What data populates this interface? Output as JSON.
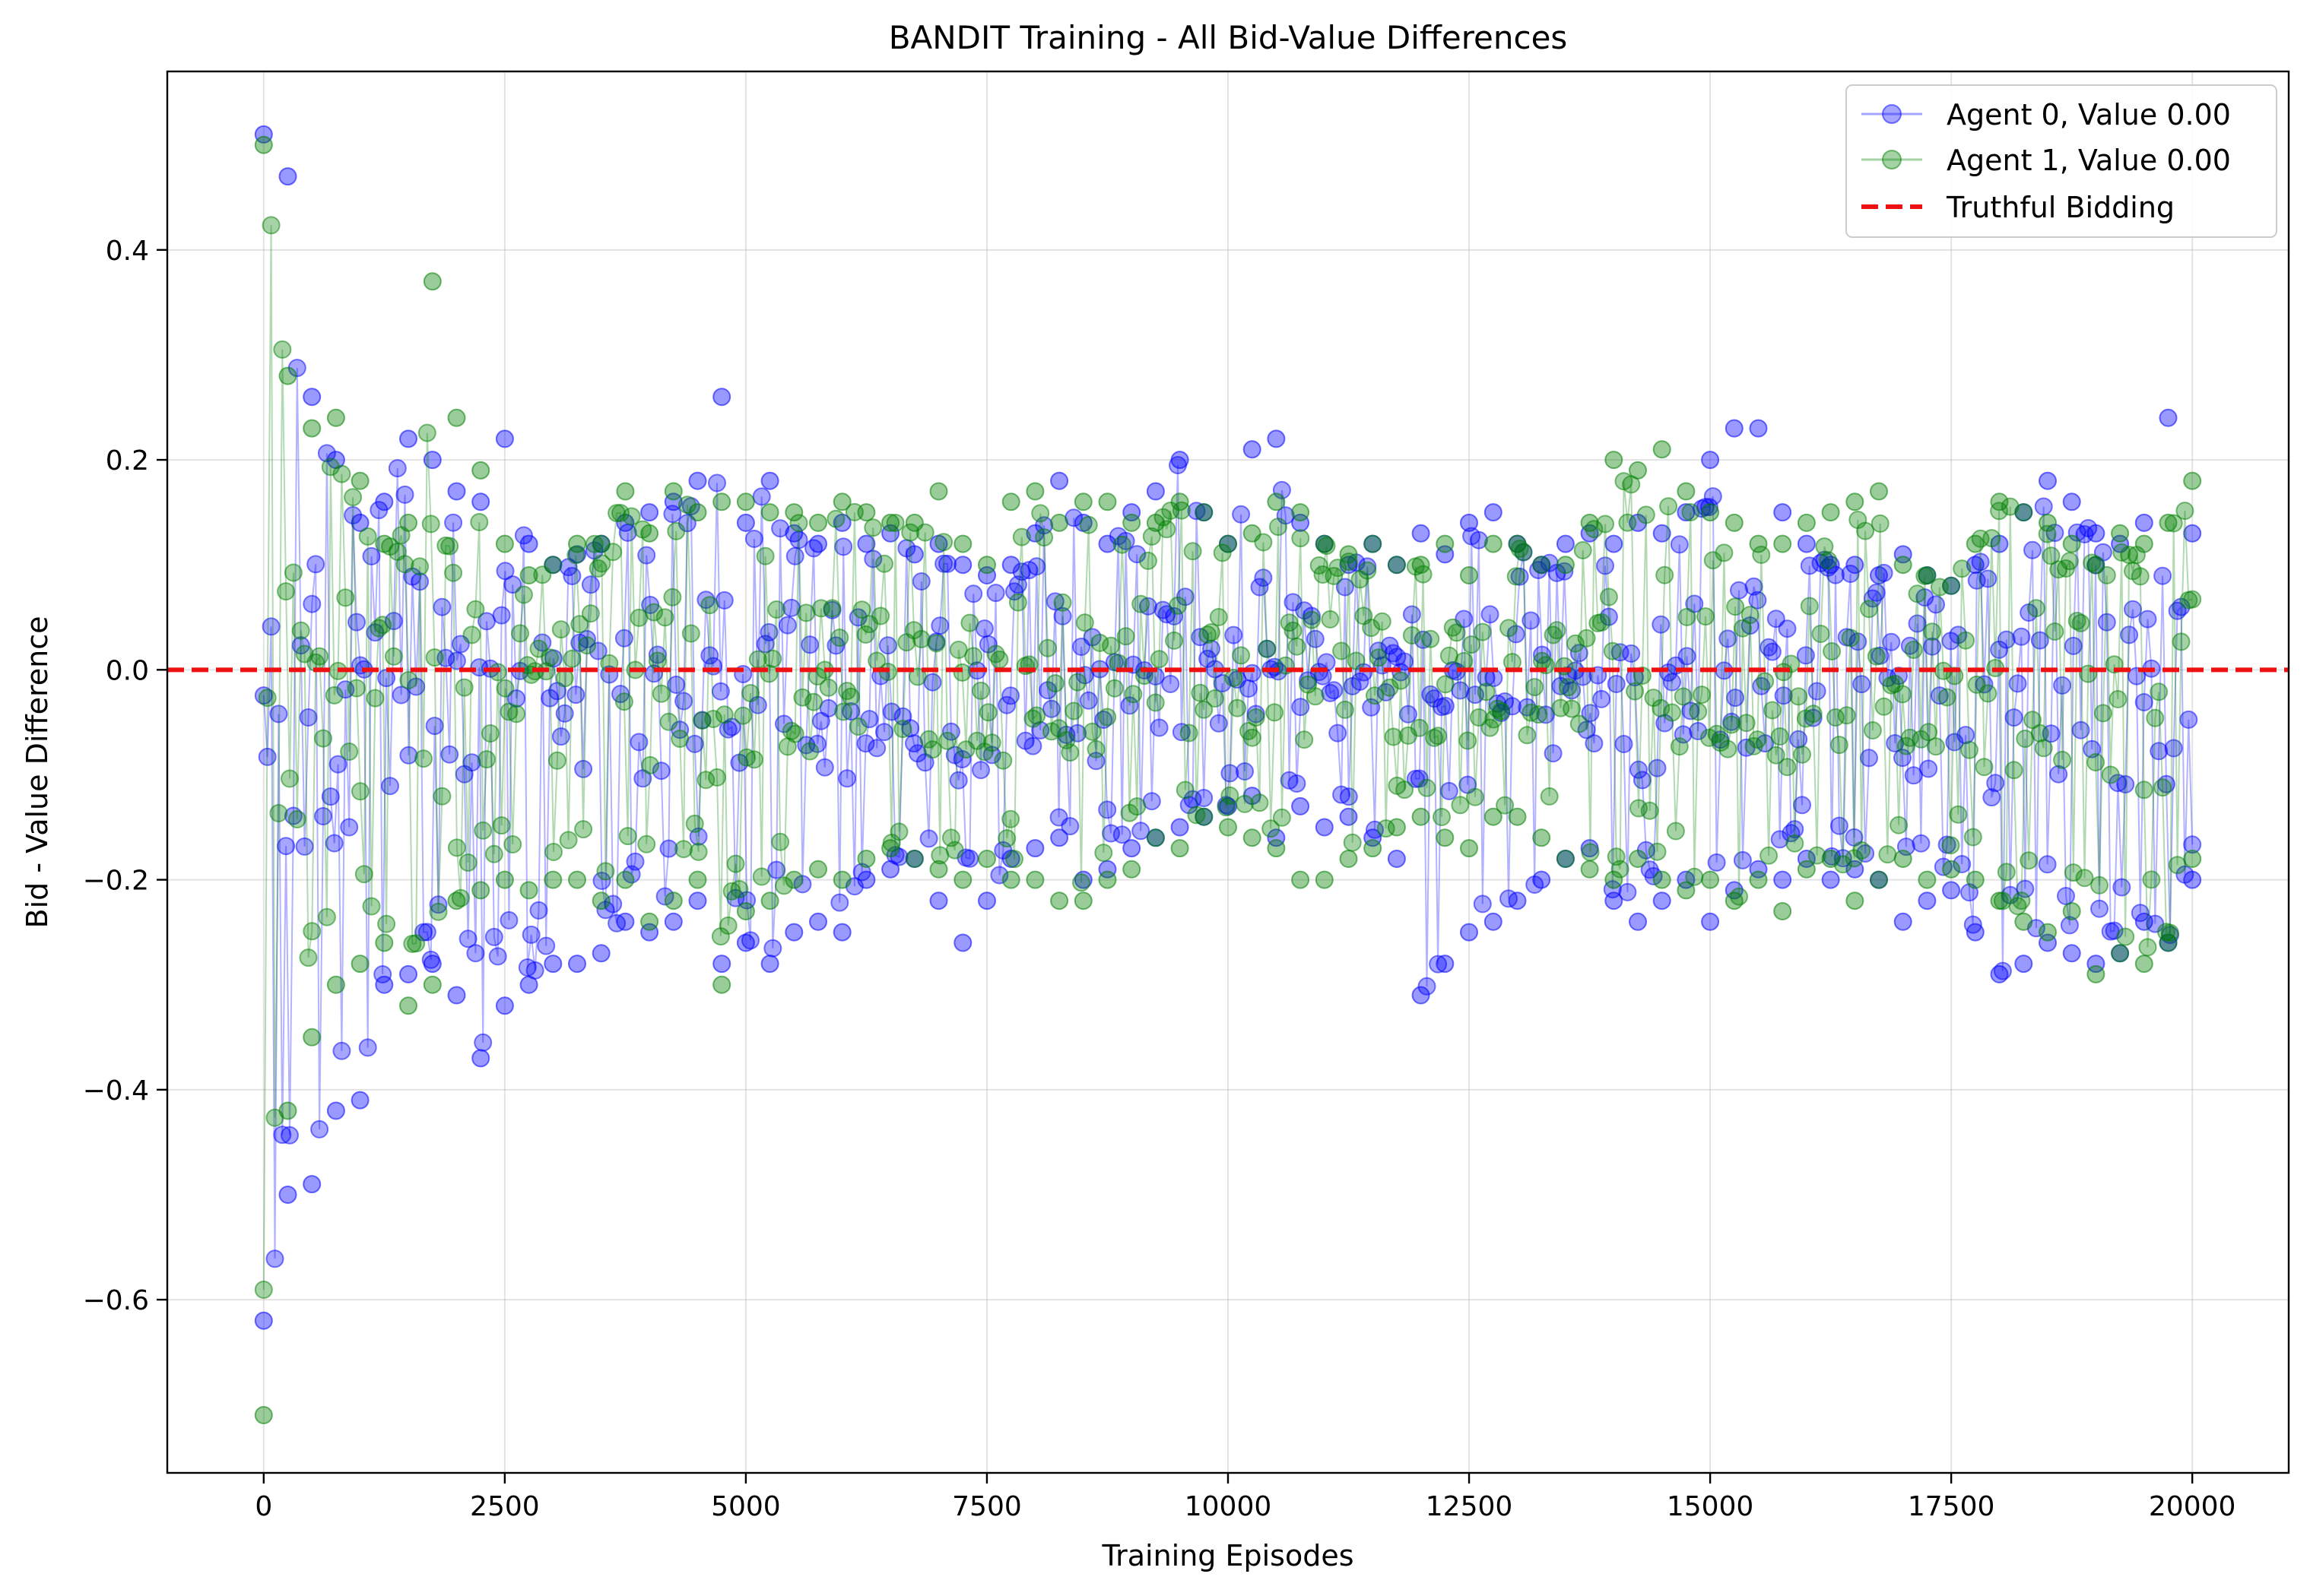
{
  "chart_data": {
    "type": "line",
    "title": "BANDIT Training - All Bid-Value Differences",
    "xlabel": "Training Episodes",
    "ylabel": "Bid - Value Difference",
    "xlim": [
      -1000,
      21000
    ],
    "ylim": [
      -0.765,
      0.57
    ],
    "x_ticks": [
      0,
      2500,
      5000,
      7500,
      10000,
      12500,
      15000,
      17500,
      20000
    ],
    "x_tick_labels": [
      "0",
      "2500",
      "5000",
      "7500",
      "10000",
      "12500",
      "15000",
      "17500",
      "20000"
    ],
    "y_ticks": [
      0.4,
      0.2,
      0.0,
      -0.2,
      -0.4,
      -0.6
    ],
    "y_tick_labels": [
      "0.4",
      "0.2",
      "0.0",
      "−0.2",
      "−0.4",
      "−0.6"
    ],
    "grid": true,
    "legend_position": "top-right",
    "reference_line": {
      "name": "Truthful Bidding",
      "y": 0.0,
      "color": "#ee1111",
      "style": "dashed"
    },
    "series": [
      {
        "name": "Agent 0, Value 0.00",
        "color": "#0000ff",
        "marker": "circle",
        "x": [
          0,
          250,
          500,
          750,
          1000,
          1250,
          1500,
          1750,
          2000,
          2250,
          2500,
          2750,
          3000,
          3250,
          3500,
          3750,
          4000,
          4250,
          4500,
          4750,
          5000,
          5250,
          5500,
          5750,
          6000,
          6250,
          6500,
          6750,
          7000,
          7250,
          7500,
          7750,
          8000,
          8250,
          8500,
          8750,
          9000,
          9250,
          9500,
          9750,
          10000,
          10250,
          10500,
          10750,
          11000,
          11250,
          11500,
          11750,
          12000,
          12250,
          12500,
          12750,
          13000,
          13250,
          13500,
          13750,
          14000,
          14250,
          14500,
          14750,
          15000,
          15250,
          15500,
          15750,
          16000,
          16250,
          16500,
          16750,
          17000,
          17250,
          17500,
          17750,
          18000,
          18250,
          18500,
          18750,
          19000,
          19250,
          19500,
          19750,
          20000
        ],
        "upper": [
          0.51,
          0.47,
          0.26,
          0.2,
          0.14,
          0.16,
          0.22,
          0.2,
          0.17,
          0.16,
          0.22,
          0.12,
          0.1,
          0.11,
          0.12,
          0.14,
          0.15,
          0.16,
          0.18,
          0.26,
          0.14,
          0.18,
          0.13,
          0.12,
          0.14,
          0.12,
          0.13,
          0.11,
          0.12,
          0.1,
          0.09,
          0.1,
          0.13,
          0.18,
          0.14,
          0.12,
          0.15,
          0.17,
          0.2,
          0.15,
          0.12,
          0.21,
          0.22,
          0.14,
          0.12,
          0.1,
          0.12,
          0.1,
          0.13,
          0.11,
          0.14,
          0.15,
          0.12,
          0.1,
          0.12,
          0.13,
          0.12,
          0.14,
          0.13,
          0.15,
          0.2,
          0.23,
          0.23,
          0.15,
          0.12,
          0.1,
          0.1,
          0.09,
          0.11,
          0.09,
          0.08,
          0.1,
          0.12,
          0.15,
          0.18,
          0.16,
          0.13,
          0.12,
          0.14,
          0.24,
          0.13
        ],
        "lower": [
          -0.62,
          -0.5,
          -0.49,
          -0.42,
          -0.41,
          -0.3,
          -0.29,
          -0.28,
          -0.31,
          -0.37,
          -0.32,
          -0.3,
          -0.28,
          -0.28,
          -0.27,
          -0.24,
          -0.25,
          -0.24,
          -0.22,
          -0.28,
          -0.26,
          -0.28,
          -0.25,
          -0.24,
          -0.25,
          -0.2,
          -0.19,
          -0.18,
          -0.22,
          -0.26,
          -0.22,
          -0.18,
          -0.17,
          -0.16,
          -0.2,
          -0.19,
          -0.17,
          -0.16,
          -0.15,
          -0.14,
          -0.13,
          -0.12,
          -0.16,
          -0.13,
          -0.15,
          -0.14,
          -0.16,
          -0.18,
          -0.31,
          -0.28,
          -0.25,
          -0.24,
          -0.22,
          -0.2,
          -0.18,
          -0.17,
          -0.22,
          -0.24,
          -0.22,
          -0.2,
          -0.24,
          -0.21,
          -0.19,
          -0.2,
          -0.18,
          -0.2,
          -0.19,
          -0.2,
          -0.24,
          -0.22,
          -0.21,
          -0.25,
          -0.29,
          -0.28,
          -0.26,
          -0.27,
          -0.28,
          -0.27,
          -0.24,
          -0.26,
          -0.2
        ]
      },
      {
        "name": "Agent 1, Value 0.00",
        "color": "#008000",
        "marker": "circle",
        "x": [
          0,
          250,
          500,
          750,
          1000,
          1250,
          1500,
          1750,
          2000,
          2250,
          2500,
          2750,
          3000,
          3250,
          3500,
          3750,
          4000,
          4250,
          4500,
          4750,
          5000,
          5250,
          5500,
          5750,
          6000,
          6250,
          6500,
          6750,
          7000,
          7250,
          7500,
          7750,
          8000,
          8250,
          8500,
          8750,
          9000,
          9250,
          9500,
          9750,
          10000,
          10250,
          10500,
          10750,
          11000,
          11250,
          11500,
          11750,
          12000,
          12250,
          12500,
          12750,
          13000,
          13250,
          13500,
          13750,
          14000,
          14250,
          14500,
          14750,
          15000,
          15250,
          15500,
          15750,
          16000,
          16250,
          16500,
          16750,
          17000,
          17250,
          17500,
          17750,
          18000,
          18250,
          18500,
          18750,
          19000,
          19250,
          19500,
          19750,
          20000
        ],
        "upper": [
          0.5,
          0.28,
          0.23,
          0.24,
          0.18,
          0.12,
          0.14,
          0.37,
          0.24,
          0.19,
          0.12,
          0.09,
          0.1,
          0.12,
          0.12,
          0.17,
          0.13,
          0.17,
          0.15,
          0.16,
          0.16,
          0.15,
          0.15,
          0.14,
          0.16,
          0.15,
          0.14,
          0.14,
          0.17,
          0.12,
          0.1,
          0.16,
          0.17,
          0.14,
          0.16,
          0.16,
          0.14,
          0.14,
          0.16,
          0.15,
          0.12,
          0.13,
          0.16,
          0.15,
          0.12,
          0.11,
          0.12,
          0.1,
          0.1,
          0.12,
          0.09,
          0.12,
          0.12,
          0.1,
          0.1,
          0.14,
          0.2,
          0.19,
          0.21,
          0.17,
          0.15,
          0.14,
          0.12,
          0.12,
          0.14,
          0.15,
          0.16,
          0.17,
          0.1,
          0.09,
          0.08,
          0.12,
          0.16,
          0.15,
          0.14,
          0.12,
          0.1,
          0.13,
          0.12,
          0.14,
          0.18
        ],
        "lower": [
          -0.71,
          -0.42,
          -0.35,
          -0.3,
          -0.28,
          -0.26,
          -0.32,
          -0.3,
          -0.22,
          -0.21,
          -0.2,
          -0.21,
          -0.2,
          -0.2,
          -0.22,
          -0.2,
          -0.24,
          -0.22,
          -0.2,
          -0.3,
          -0.23,
          -0.22,
          -0.2,
          -0.19,
          -0.2,
          -0.18,
          -0.17,
          -0.18,
          -0.19,
          -0.2,
          -0.18,
          -0.2,
          -0.2,
          -0.22,
          -0.22,
          -0.2,
          -0.19,
          -0.16,
          -0.17,
          -0.14,
          -0.15,
          -0.16,
          -0.17,
          -0.2,
          -0.2,
          -0.18,
          -0.17,
          -0.15,
          -0.14,
          -0.16,
          -0.17,
          -0.14,
          -0.14,
          -0.16,
          -0.18,
          -0.19,
          -0.2,
          -0.18,
          -0.2,
          -0.21,
          -0.2,
          -0.22,
          -0.2,
          -0.23,
          -0.19,
          -0.18,
          -0.22,
          -0.2,
          -0.18,
          -0.2,
          -0.19,
          -0.2,
          -0.22,
          -0.24,
          -0.25,
          -0.23,
          -0.29,
          -0.27,
          -0.28,
          -0.26,
          -0.18
        ]
      }
    ]
  }
}
